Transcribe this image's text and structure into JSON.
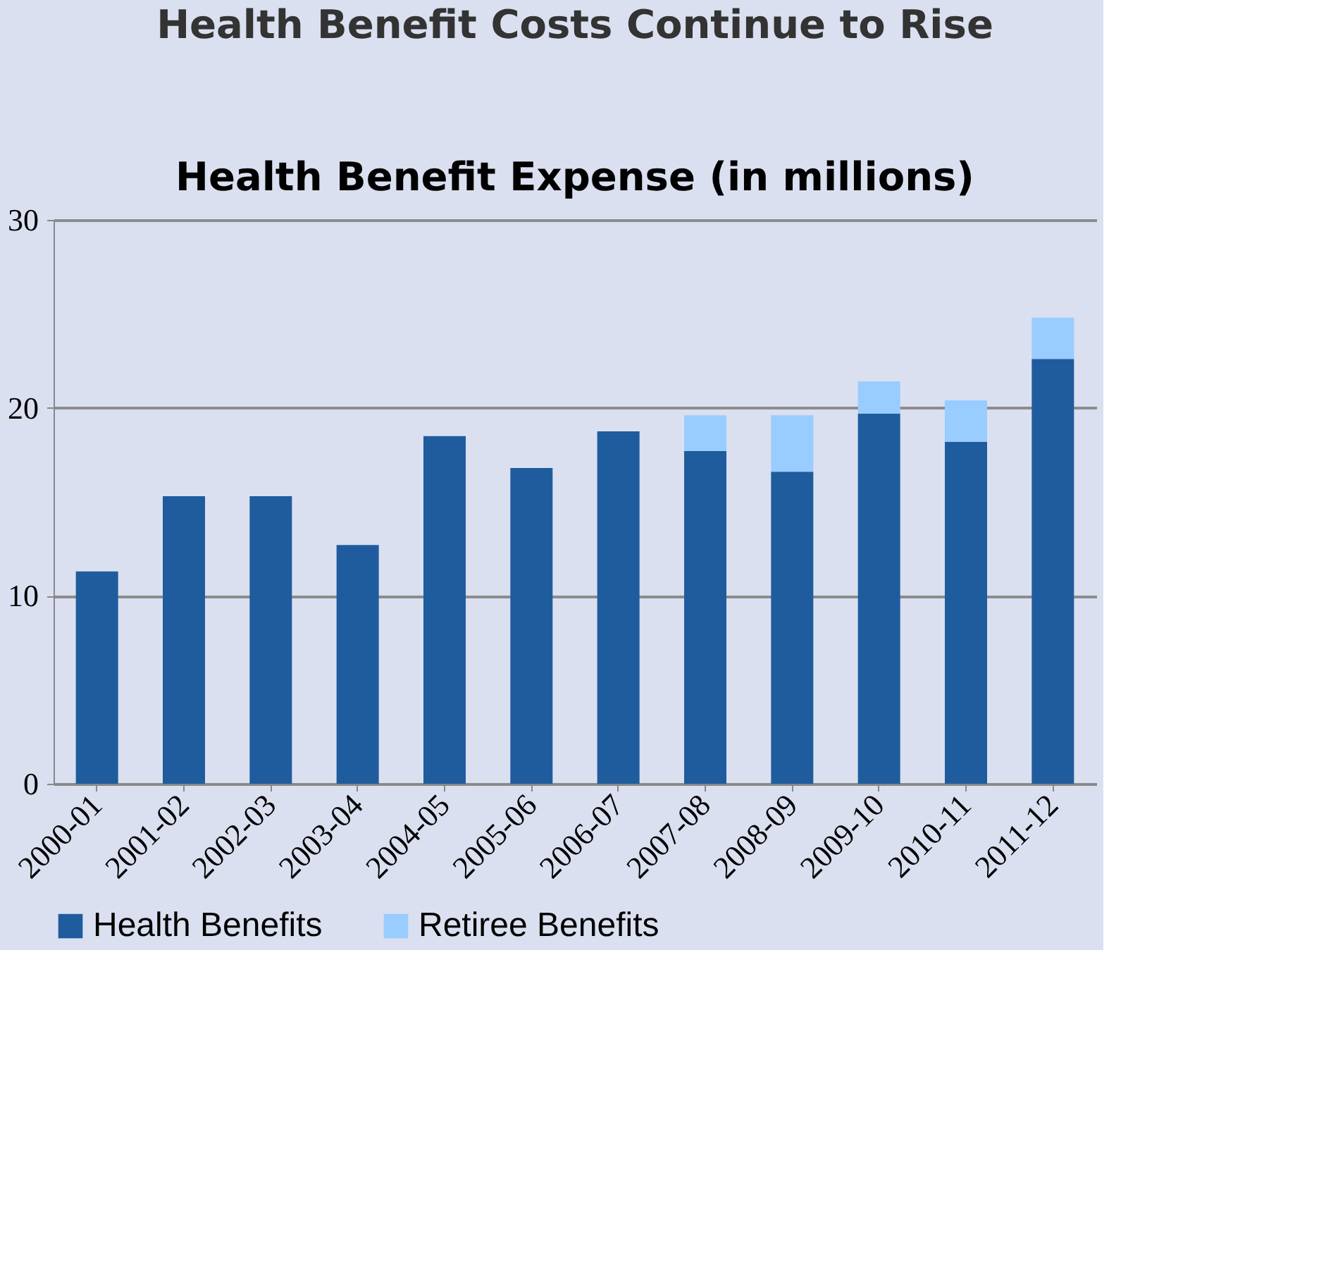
{
  "chart_data": {
    "type": "bar",
    "title": "Health Benefit Costs Continue to Rise",
    "subtitle": "Health Benefit Expense (in millions)",
    "categories": [
      "2000-01",
      "2001-02",
      "2002-03",
      "2003-04",
      "2004-05",
      "2005-06",
      "2006-07",
      "2007-08",
      "2008-09",
      "2009-10",
      "2010-11",
      "2011-12"
    ],
    "stacked": true,
    "series": [
      {
        "name": "Health Benefits",
        "color": "#1f5c9e",
        "values": [
          11.3,
          15.3,
          15.3,
          12.7,
          18.5,
          16.8,
          18.75,
          17.7,
          16.6,
          19.7,
          18.2,
          22.6
        ]
      },
      {
        "name": "Retiree Benefits",
        "color": "#99ccff",
        "values": [
          null,
          null,
          null,
          null,
          null,
          null,
          null,
          1.9,
          3.0,
          1.7,
          2.2,
          2.2
        ]
      }
    ],
    "ylim": [
      0,
      30
    ],
    "yticks": [
      0,
      10,
      20,
      30
    ],
    "grid": "y",
    "legend": "bottom"
  }
}
